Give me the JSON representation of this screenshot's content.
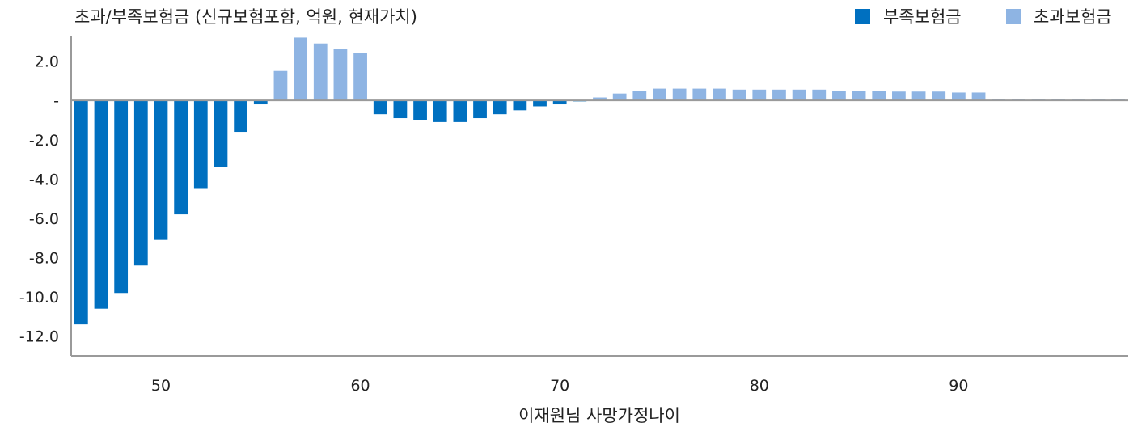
{
  "chart_data": {
    "type": "bar",
    "title": "초과/부족보험금 (신규보험포함, 억원, 현재가치)",
    "xlabel": "이재원님 사망가정나이",
    "ylabel": "",
    "ylim": [
      -13.0,
      3.3
    ],
    "xlim": [
      45.5,
      98.5
    ],
    "y_ticks": [
      "2.0",
      "-",
      "-2.0",
      "-4.0",
      "-6.0",
      "-8.0",
      "-10.0",
      "-12.0"
    ],
    "y_tick_values": [
      2,
      0,
      -2,
      -4,
      -6,
      -8,
      -10,
      -12
    ],
    "x_ticks": [
      "50",
      "60",
      "70",
      "80",
      "90"
    ],
    "x_tick_values": [
      50,
      60,
      70,
      80,
      90
    ],
    "grid": false,
    "legend_position": "top-right",
    "x": [
      46,
      47,
      48,
      49,
      50,
      51,
      52,
      53,
      54,
      55,
      56,
      57,
      58,
      59,
      60,
      61,
      62,
      63,
      64,
      65,
      66,
      67,
      68,
      69,
      70,
      71,
      72,
      73,
      74,
      75,
      76,
      77,
      78,
      79,
      80,
      81,
      82,
      83,
      84,
      85,
      86,
      87,
      88,
      89,
      90,
      91,
      92,
      93,
      94,
      95,
      96,
      97,
      98
    ],
    "series": [
      {
        "name": "부족보험금",
        "color": "#0070c0",
        "values": [
          -11.4,
          -10.6,
          -9.8,
          -8.4,
          -7.1,
          -5.8,
          -4.5,
          -3.4,
          -1.6,
          -0.2,
          0,
          0,
          0,
          0,
          0,
          -0.7,
          -0.9,
          -1.0,
          -1.1,
          -1.1,
          -0.9,
          -0.7,
          -0.5,
          -0.3,
          -0.2,
          -0.05,
          0,
          0,
          0,
          0,
          0,
          0,
          0,
          0,
          0,
          0,
          0,
          0,
          0,
          0,
          0,
          0,
          0,
          0,
          0,
          0,
          0,
          0,
          0,
          0,
          0,
          0,
          0
        ]
      },
      {
        "name": "초과보험금",
        "color": "#8eb4e3",
        "values": [
          0,
          0,
          0,
          0,
          0,
          0,
          0,
          0,
          0,
          0,
          1.5,
          3.2,
          2.9,
          2.6,
          2.4,
          0,
          0,
          0,
          0,
          0,
          0,
          0,
          0,
          0,
          0,
          0,
          0.15,
          0.35,
          0.5,
          0.6,
          0.6,
          0.6,
          0.6,
          0.55,
          0.55,
          0.55,
          0.55,
          0.55,
          0.5,
          0.5,
          0.5,
          0.45,
          0.45,
          0.45,
          0.4,
          0.4,
          0.05,
          0.05,
          0.05,
          0.05,
          0.05,
          0.05,
          0.05
        ]
      }
    ]
  }
}
